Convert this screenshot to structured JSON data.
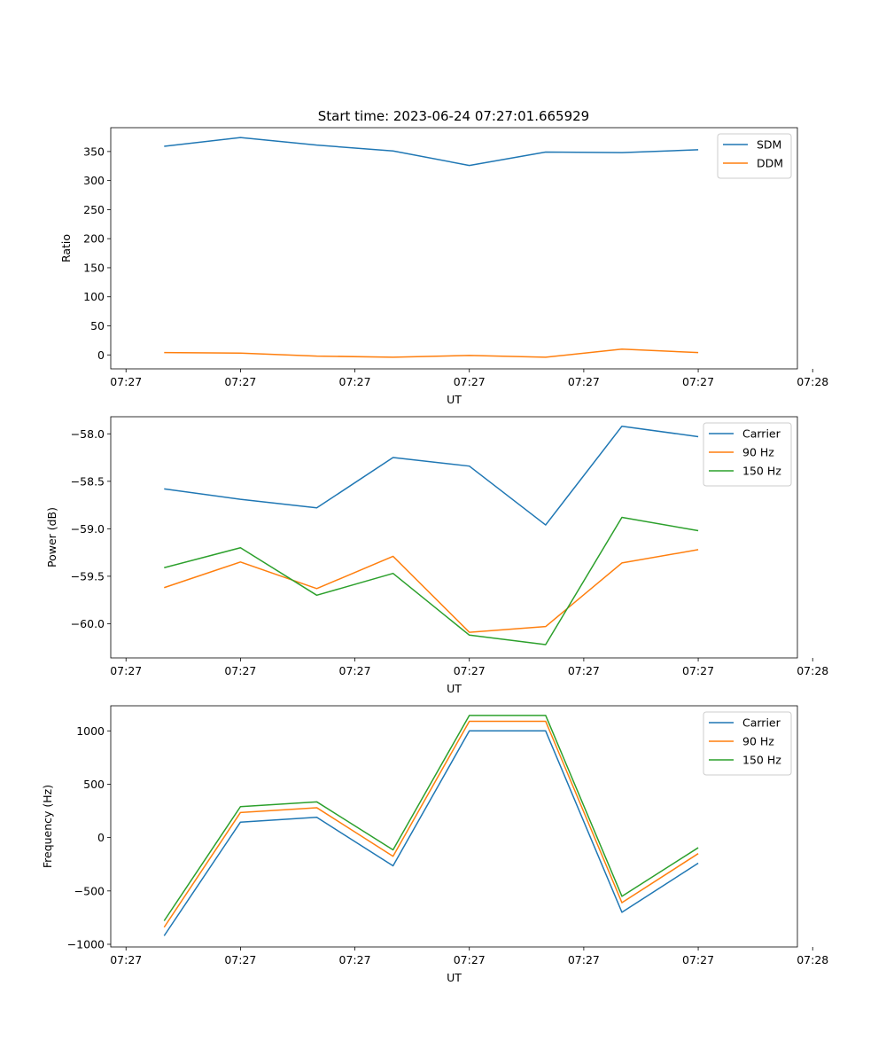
{
  "figure_title": "Start time: 2023-06-24 07:27:01.665929",
  "colors": {
    "blue": "#1f77b4",
    "orange": "#ff7f0e",
    "green": "#2ca02c"
  },
  "chart_data": [
    {
      "type": "line",
      "xlabel": "UT",
      "ylabel": "Ratio",
      "legend_position": "top-right",
      "x_tick_labels": [
        "07:27",
        "07:27",
        "07:27",
        "07:27",
        "07:27",
        "07:27",
        "07:28"
      ],
      "y_ticks": [
        0,
        50,
        100,
        150,
        200,
        250,
        300,
        350
      ],
      "y_tick_labels": [
        "0",
        "50",
        "100",
        "150",
        "200",
        "250",
        "300",
        "350"
      ],
      "ylim": [
        -24,
        391
      ],
      "x_index_range": [
        -0.7,
        8.3
      ],
      "series": [
        {
          "name": "SDM",
          "color": "#1f77b4",
          "values": [
            359,
            374,
            361,
            351,
            326,
            349,
            348,
            353
          ]
        },
        {
          "name": "DDM",
          "color": "#ff7f0e",
          "values": [
            4,
            3,
            -2,
            -4,
            -1,
            -4,
            10,
            4
          ]
        }
      ]
    },
    {
      "type": "line",
      "xlabel": "UT",
      "ylabel": "Power (dB)",
      "legend_position": "top-right",
      "x_tick_labels": [
        "07:27",
        "07:27",
        "07:27",
        "07:27",
        "07:27",
        "07:27",
        "07:28"
      ],
      "y_ticks": [
        -60.0,
        -59.5,
        -59.0,
        -58.5,
        -58.0
      ],
      "y_tick_labels": [
        "−60.0",
        "−59.5",
        "−59.0",
        "−58.5",
        "−58.0"
      ],
      "ylim": [
        -60.36,
        -57.82
      ],
      "x_index_range": [
        -0.7,
        8.3
      ],
      "series": [
        {
          "name": "Carrier",
          "color": "#1f77b4",
          "values": [
            -58.58,
            -58.69,
            -58.78,
            -58.25,
            -58.34,
            -58.96,
            -57.92,
            -58.03
          ]
        },
        {
          "name": "90 Hz",
          "color": "#ff7f0e",
          "values": [
            -59.62,
            -59.35,
            -59.63,
            -59.29,
            -60.09,
            -60.03,
            -59.36,
            -59.22
          ]
        },
        {
          "name": "150 Hz",
          "color": "#2ca02c",
          "values": [
            -59.41,
            -59.2,
            -59.7,
            -59.47,
            -60.12,
            -60.22,
            -58.88,
            -59.02
          ]
        }
      ]
    },
    {
      "type": "line",
      "xlabel": "UT",
      "ylabel": "Frequency (Hz)",
      "legend_position": "top-right",
      "x_tick_labels": [
        "07:27",
        "07:27",
        "07:27",
        "07:27",
        "07:27",
        "07:27",
        "07:28"
      ],
      "y_ticks": [
        -1000,
        -500,
        0,
        500,
        1000
      ],
      "y_tick_labels": [
        "−1000",
        "−500",
        "0",
        "500",
        "1000"
      ],
      "ylim": [
        -1025,
        1235
      ],
      "x_index_range": [
        -0.7,
        8.3
      ],
      "series": [
        {
          "name": "Carrier",
          "color": "#1f77b4",
          "values": [
            -920,
            145,
            190,
            -265,
            1000,
            1000,
            -700,
            -240
          ]
        },
        {
          "name": "90 Hz",
          "color": "#ff7f0e",
          "values": [
            -840,
            235,
            280,
            -175,
            1090,
            1090,
            -610,
            -150
          ]
        },
        {
          "name": "150 Hz",
          "color": "#2ca02c",
          "values": [
            -780,
            290,
            335,
            -115,
            1145,
            1145,
            -550,
            -95
          ]
        }
      ]
    }
  ]
}
